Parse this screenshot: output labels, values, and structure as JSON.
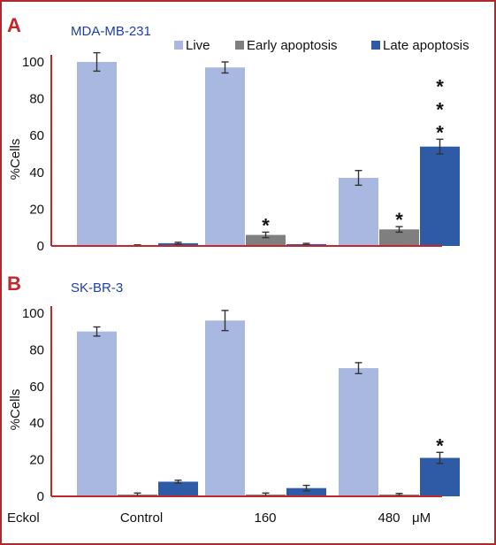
{
  "colors": {
    "frame": "#b0282c",
    "panel_letter": "#c0282c",
    "cell_line_text": "#1f3fa6",
    "axis": "#c0282c",
    "live": "#a9b8e0",
    "early": "#7f7f7f",
    "late": "#2f5aa6"
  },
  "legend": [
    "Live",
    "Early apoptosis",
    "Late apoptosis"
  ],
  "x_axis": {
    "treatment_label": "Eckol",
    "categories": [
      "Control",
      "160",
      "480"
    ],
    "unit": "μM"
  },
  "chart_data": [
    {
      "type": "bar",
      "panel": "A",
      "cell_line": "MDA-MB-231",
      "ylabel": "%Cells",
      "ylim": [
        0,
        100
      ],
      "yticks": [
        0,
        20,
        40,
        60,
        80,
        100
      ],
      "categories": [
        "Control",
        "160",
        "480"
      ],
      "series": [
        {
          "name": "Live",
          "values": [
            100,
            97,
            37
          ],
          "errors": [
            5,
            3,
            4
          ]
        },
        {
          "name": "Early apoptosis",
          "values": [
            0.3,
            6,
            9
          ],
          "errors": [
            0.3,
            1.5,
            1.5
          ]
        },
        {
          "name": "Late apoptosis",
          "values": [
            1.5,
            1,
            54
          ],
          "errors": [
            0.5,
            0.4,
            4
          ]
        }
      ],
      "significance": [
        {
          "category": "160",
          "series": "Early apoptosis",
          "stars": 1
        },
        {
          "category": "480",
          "series": "Early apoptosis",
          "stars": 1
        },
        {
          "category": "480",
          "series": "Late apoptosis",
          "stars": 3
        }
      ],
      "legend_position": "top-right",
      "grid": false
    },
    {
      "type": "bar",
      "panel": "B",
      "cell_line": "SK-BR-3",
      "ylabel": "%Cells",
      "ylim": [
        0,
        100
      ],
      "yticks": [
        0,
        20,
        40,
        60,
        80,
        100
      ],
      "categories": [
        "Control",
        "160",
        "480"
      ],
      "series": [
        {
          "name": "Live",
          "values": [
            90,
            96,
            70
          ],
          "errors": [
            2.5,
            5.5,
            3
          ]
        },
        {
          "name": "Early apoptosis",
          "values": [
            1,
            1,
            1
          ],
          "errors": [
            0.8,
            0.8,
            0.6
          ]
        },
        {
          "name": "Late apoptosis",
          "values": [
            8,
            4.5,
            21
          ],
          "errors": [
            0.8,
            1.5,
            3
          ]
        }
      ],
      "significance": [
        {
          "category": "480",
          "series": "Late apoptosis",
          "stars": 1
        }
      ],
      "grid": false
    }
  ]
}
